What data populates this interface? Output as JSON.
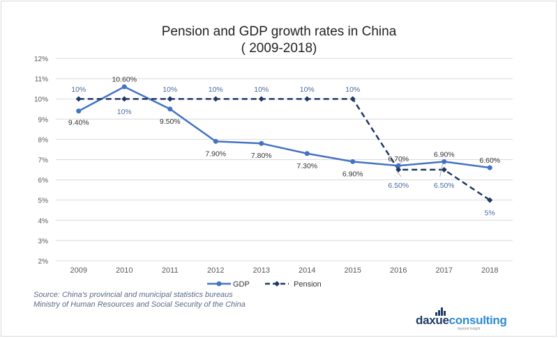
{
  "title_line1": "Pension and GDP growth rates in China",
  "title_line2": "( 2009-2018)",
  "source_line1": "Source: China's provincial and municipal statistics bureaus",
  "source_line2": "Ministry of Human Resources and Social Security of the China",
  "logo": {
    "part1": "daxue",
    "part2": "consulting",
    "tagline": "beyond insight"
  },
  "colors": {
    "gdp": "#4472c4",
    "pension": "#1f3864",
    "grid": "#d9d9d9",
    "axis_text": "#595959"
  },
  "chart_data": {
    "type": "line",
    "title": "Pension and GDP growth rates in China ( 2009-2018)",
    "categories": [
      "2009",
      "2010",
      "2011",
      "2012",
      "2013",
      "2014",
      "2015",
      "2016",
      "2017",
      "2018"
    ],
    "ylim": [
      2,
      12
    ],
    "yticks": [
      2,
      3,
      4,
      5,
      6,
      7,
      8,
      9,
      10,
      11,
      12
    ],
    "ytick_labels": [
      "2%",
      "3%",
      "4%",
      "5%",
      "6%",
      "7%",
      "8%",
      "9%",
      "10%",
      "11%",
      "12%"
    ],
    "legend_position": "bottom",
    "series": [
      {
        "name": "GDP",
        "style": "solid-circle",
        "values": [
          9.4,
          10.6,
          9.5,
          7.9,
          7.8,
          7.3,
          6.9,
          6.7,
          6.9,
          6.6
        ],
        "labels": [
          "9.40%",
          "10.60%",
          "9.50%",
          "7.90%",
          "7.80%",
          "7.30%",
          "6.90%",
          "6.70%",
          "6.90%",
          "6.60%"
        ]
      },
      {
        "name": "Pension",
        "style": "dashed-diamond",
        "values": [
          10,
          10,
          10,
          10,
          10,
          10,
          10,
          6.5,
          6.5,
          5
        ],
        "labels": [
          "10%",
          "10%",
          "10%",
          "10%",
          "10%",
          "10%",
          "10%",
          "6.50%",
          "6.50%",
          "5%"
        ]
      }
    ]
  }
}
